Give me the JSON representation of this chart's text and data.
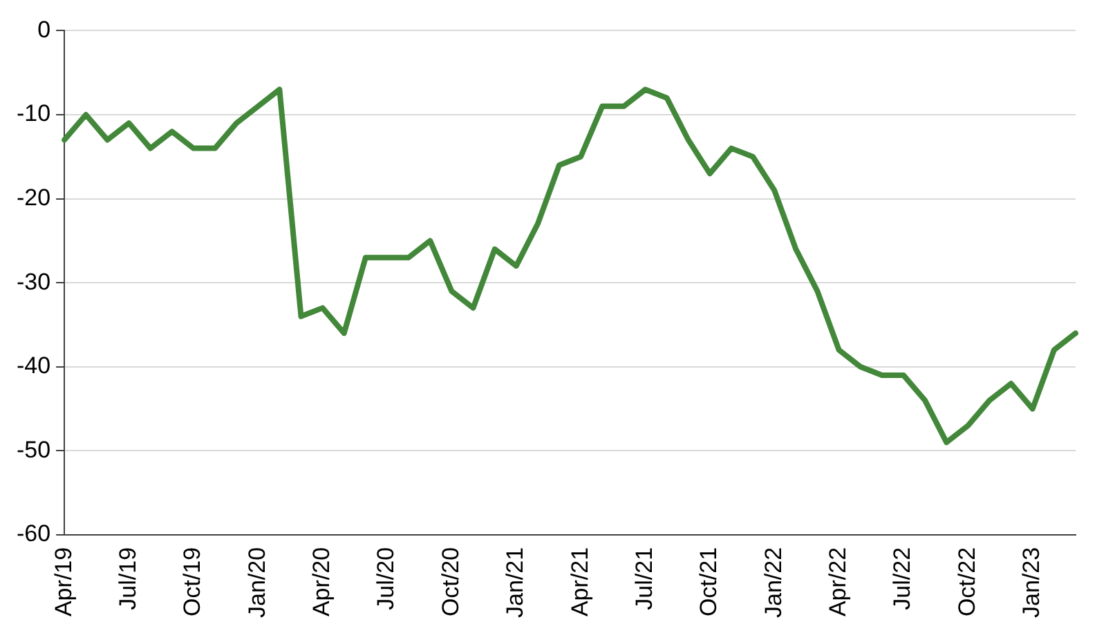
{
  "chart_data": {
    "type": "line",
    "categories": [
      "Apr/19",
      null,
      null,
      "Jul/19",
      null,
      null,
      "Oct/19",
      null,
      null,
      "Jan/20",
      null,
      null,
      "Apr/20",
      null,
      null,
      "Jul/20",
      null,
      null,
      "Oct/20",
      null,
      null,
      "Jan/21",
      null,
      null,
      "Apr/21",
      null,
      null,
      "Jul/21",
      null,
      null,
      "Oct/21",
      null,
      null,
      "Jan/22",
      null,
      null,
      "Apr/22",
      null,
      null,
      "Jul/22",
      null,
      null,
      "Oct/22",
      null,
      null,
      "Jan/23",
      null,
      null
    ],
    "series": [
      {
        "color": "#43883a",
        "values": [
          -13,
          -10,
          -13,
          -11,
          -14,
          -12,
          -14,
          -14,
          -11,
          -9,
          -7,
          -34,
          -33,
          -36,
          -27,
          -27,
          -27,
          -25,
          -31,
          -33,
          -26,
          -28,
          -23,
          -16,
          -15,
          -9,
          -9,
          -7,
          -8,
          -13,
          -17,
          -14,
          -15,
          -19,
          -26,
          -31,
          -38,
          -40,
          -41,
          -41,
          -44,
          -49,
          -47,
          -44,
          -42,
          -45,
          -38,
          -36
        ]
      }
    ],
    "ylim": [
      -60,
      0
    ],
    "yticks": [
      -60,
      -50,
      -40,
      -30,
      -20,
      -10,
      0
    ],
    "grid": "y",
    "legend": false,
    "marker": "none",
    "line_style": "solid"
  }
}
